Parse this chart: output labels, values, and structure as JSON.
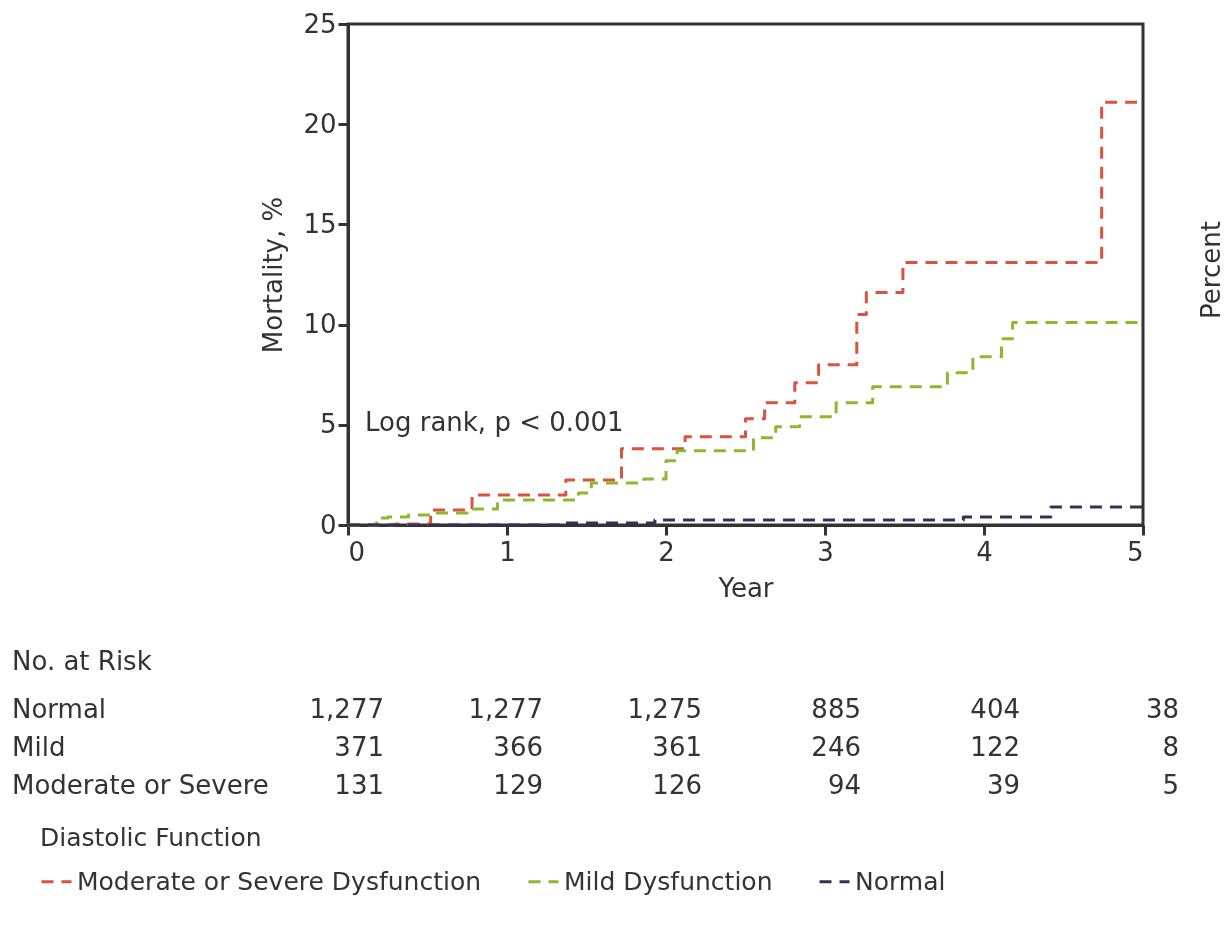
{
  "chart_data": {
    "type": "step",
    "xlabel": "Year",
    "ylabel": "Mortality, %",
    "legend_title": "Diastolic Function",
    "legend": "bottom",
    "line_style": "dashed",
    "marker": "none",
    "grid": false,
    "xlim": [
      0,
      5
    ],
    "xticks": [
      0,
      1,
      2,
      3,
      4,
      5
    ],
    "ylim": [
      0,
      25
    ],
    "yticks": [
      0,
      5,
      10,
      15,
      20,
      25
    ],
    "series": [
      {
        "name": "Moderate or Severe Dysfunction",
        "color": "#d9533f",
        "x": [
          0,
          0.3,
          0.52,
          0.78,
          1.37,
          1.72,
          2.12,
          2.5,
          2.62,
          2.81,
          2.96,
          3.2,
          3.26,
          3.49,
          4.74,
          5
        ],
        "values": [
          0,
          0.05,
          0.75,
          1.5,
          2.25,
          3.8,
          4.4,
          5.3,
          6.1,
          7.1,
          8.0,
          10.5,
          11.6,
          13.1,
          21.1,
          21.1
        ]
      },
      {
        "name": "Mild Dysfunction",
        "color": "#8db82e",
        "x": [
          0,
          0.18,
          0.25,
          0.38,
          0.52,
          0.75,
          0.94,
          1.45,
          1.53,
          1.86,
          2.0,
          2.07,
          2.55,
          2.69,
          2.84,
          3.07,
          3.3,
          3.77,
          3.93,
          4.11,
          4.18,
          5
        ],
        "values": [
          0,
          0.35,
          0.4,
          0.5,
          0.6,
          0.8,
          1.25,
          1.6,
          2.1,
          2.3,
          3.2,
          3.7,
          4.35,
          4.9,
          5.4,
          6.1,
          6.9,
          7.6,
          8.4,
          9.3,
          10.1,
          10.1
        ]
      },
      {
        "name": "Normal",
        "color": "#2c3557",
        "x": [
          0,
          1.37,
          1.93,
          3.87,
          4.42,
          5
        ],
        "values": [
          0,
          0.1,
          0.25,
          0.4,
          0.9,
          0.9
        ]
      }
    ],
    "annotations": [
      "Log rank, p < 0.001",
      "Percent",
      "No. at Risk",
      "Normal",
      "1,277",
      "1,277",
      "1,275",
      "885",
      "404",
      "38",
      "Mild",
      "371",
      "366",
      "361",
      "246",
      "122",
      "8",
      "Moderate or Severe",
      "131",
      "129",
      "126",
      "94",
      "39",
      "5"
    ]
  }
}
